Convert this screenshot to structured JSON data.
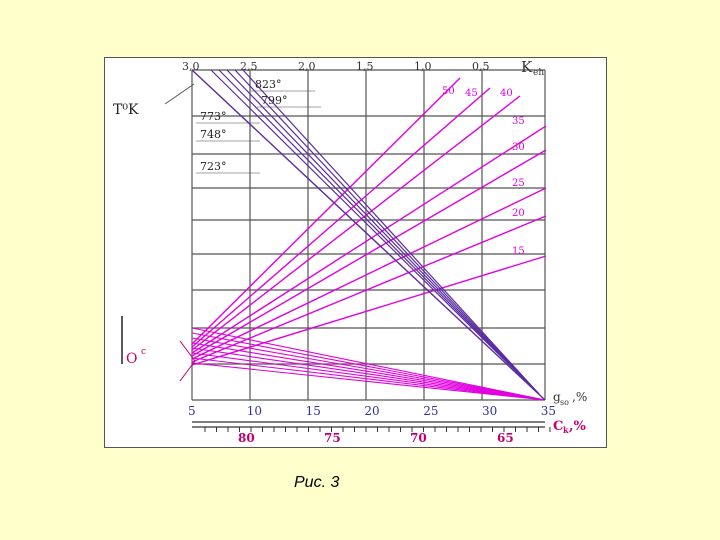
{
  "caption": "Рис. 3",
  "colors": {
    "grid": "#555555",
    "magenta": "#e000e0",
    "purple": "#6a1fb5",
    "temp_line": "#5a2ca0",
    "background": "#ffffcc"
  },
  "chart_data": {
    "type": "line",
    "title": "",
    "top_axis": {
      "label": "K",
      "label_subscript": "eh",
      "ticks": [
        "3,0",
        "2,5",
        "2,0",
        "1,5",
        "1,0",
        "0,5"
      ],
      "values": [
        3.0,
        2.5,
        2.0,
        1.5,
        1.0,
        0.5
      ]
    },
    "bottom_axis_1": {
      "label": "g",
      "label_subscript": "so",
      "label_suffix": ",%",
      "ticks": [
        "5",
        "10",
        "15",
        "20",
        "25",
        "30",
        "35"
      ],
      "values": [
        5,
        10,
        15,
        20,
        25,
        30,
        35
      ]
    },
    "bottom_axis_2": {
      "label": "C",
      "label_subscript": "k",
      "label_suffix": ",%",
      "ticks": [
        "80",
        "75",
        "70",
        "65"
      ],
      "values": [
        80,
        75,
        70,
        65
      ]
    },
    "left_axis": {
      "label": "O",
      "label_superscript": "c"
    },
    "temperature_label": "T⁰K",
    "temperature_series": [
      {
        "label": "823°",
        "value": 823
      },
      {
        "label": "799°",
        "value": 799
      },
      {
        "label": "773°",
        "value": 773
      },
      {
        "label": "748°",
        "value": 748
      },
      {
        "label": "723°",
        "value": 723
      }
    ],
    "oc_series": [
      {
        "label": "50",
        "value": 50
      },
      {
        "label": "45",
        "value": 45
      },
      {
        "label": "40",
        "value": 40
      },
      {
        "label": "35",
        "value": 35
      },
      {
        "label": "30",
        "value": 30
      },
      {
        "label": "25",
        "value": 25
      },
      {
        "label": "20",
        "value": 20
      },
      {
        "label": "15",
        "value": 15
      }
    ],
    "grid": true
  }
}
